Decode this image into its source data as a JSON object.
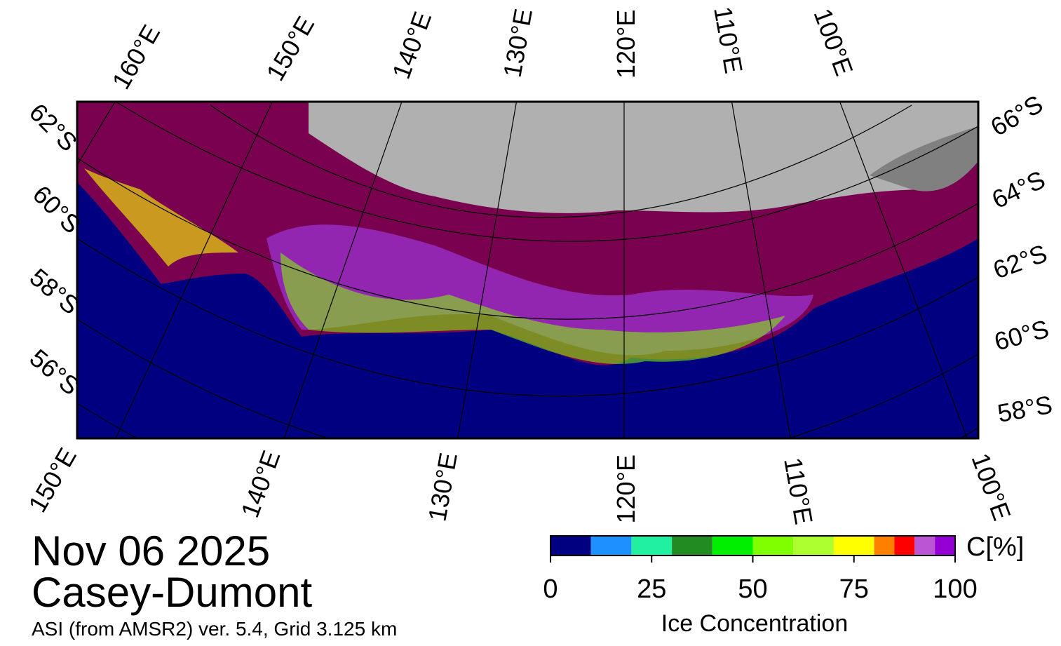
{
  "map": {
    "lon_labels_top": [
      "160°E",
      "150°E",
      "140°E",
      "130°E",
      "120°E",
      "110°E",
      "100°E"
    ],
    "lon_labels_bottom": [
      "150°E",
      "140°E",
      "130°E",
      "120°E",
      "110°E",
      "100°E"
    ],
    "lat_labels_left": [
      "62°S",
      "60°S",
      "58°S",
      "56°S"
    ],
    "lat_labels_right": [
      "66°S",
      "64°S",
      "62°S",
      "60°S",
      "58°S"
    ]
  },
  "date": "Nov 06 2025",
  "region": "Casey-Dumont",
  "source": "ASI (from AMSR2) ver. 5.4,  Grid 3.125 km",
  "colorbar": {
    "label": "Ice Concentration",
    "unit": "C[%]",
    "lim": [
      0,
      100
    ],
    "ticks": [
      0,
      25,
      50,
      75,
      100
    ],
    "bounds": [
      0,
      10,
      20,
      30,
      40,
      50,
      60,
      70,
      80,
      85,
      90,
      95,
      100
    ],
    "colors": [
      "#000080",
      "#1e90ff",
      "#20f0a0",
      "#228b22",
      "#00ee00",
      "#7fff00",
      "#adff2f",
      "#ffff00",
      "#ff8000",
      "#ff0000",
      "#ba55d3",
      "#9400d3"
    ]
  }
}
